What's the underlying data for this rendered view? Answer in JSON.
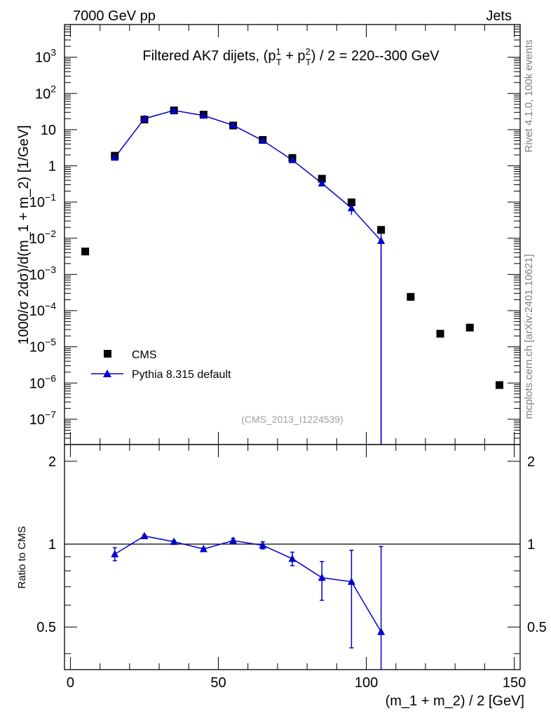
{
  "header": {
    "left": "7000 GeV pp",
    "right": "Jets"
  },
  "title": {
    "main": "Filtered AK7 dijets, (p",
    "sup1": "1",
    "sub1": "T",
    "plus": " + p",
    "sup2": "2",
    "sub2": "T",
    "tail": ") / 2 = 220--300 GeV"
  },
  "side_labels": {
    "rivet": "Rivet 4.1.0,  100k events",
    "mcplots": "mcplots.cern.ch [arXiv:2401.10621]"
  },
  "analysis_id": "(CMS_2013_I1224539)",
  "legend": {
    "cms": "CMS",
    "pythia": "Pythia 8.315 default"
  },
  "colors": {
    "data": "#000000",
    "mc": "#0000cc"
  },
  "chart_data": [
    {
      "type": "scatter",
      "panel": "main",
      "ylabel": "1000/σ  2dσ)/d(m_1 + m_2) [1/GeV]",
      "xlim": [
        -2,
        152
      ],
      "ylim": [
        2e-08,
        8000
      ],
      "yscale": "log",
      "yticks": [
        {
          "v": 1e-07,
          "label": "10",
          "exp": "−7"
        },
        {
          "v": 1e-06,
          "label": "10",
          "exp": "−6"
        },
        {
          "v": 1e-05,
          "label": "10",
          "exp": "−5"
        },
        {
          "v": 0.0001,
          "label": "10",
          "exp": "−4"
        },
        {
          "v": 0.001,
          "label": "10",
          "exp": "−3"
        },
        {
          "v": 0.01,
          "label": "10",
          "exp": "−2"
        },
        {
          "v": 0.1,
          "label": "10",
          "exp": "−1"
        },
        {
          "v": 1,
          "label": "1",
          "exp": ""
        },
        {
          "v": 10,
          "label": "10",
          "exp": ""
        },
        {
          "v": 100,
          "label": "10",
          "exp": "2"
        },
        {
          "v": 1000,
          "label": "10",
          "exp": "3"
        }
      ],
      "legend_position": "lower-left",
      "series": [
        {
          "name": "CMS",
          "marker": "square",
          "x": [
            5,
            15,
            25,
            35,
            45,
            55,
            65,
            75,
            85,
            95,
            105,
            115,
            125,
            135,
            145
          ],
          "y": [
            0.0043,
            1.9,
            19.0,
            34.0,
            26.0,
            13.0,
            5.2,
            1.65,
            0.44,
            0.098,
            0.017,
            0.00024,
            2.3e-05,
            3.4e-05,
            8.8e-07
          ]
        },
        {
          "name": "Pythia 8.315 default",
          "marker": "triangle",
          "x": [
            15,
            25,
            35,
            45,
            55,
            65,
            75,
            85,
            95,
            105
          ],
          "y": [
            1.7,
            20.0,
            34.0,
            24.5,
            13.2,
            5.0,
            1.45,
            0.33,
            0.068,
            0.0085
          ],
          "yerr_low": [
            0,
            0,
            0,
            0,
            0,
            0,
            0,
            0,
            0.024,
            0.0085
          ],
          "yerr_high": [
            0,
            0,
            0,
            0,
            0,
            0,
            0,
            0,
            0.022,
            0.0085
          ]
        }
      ]
    },
    {
      "type": "scatter",
      "panel": "ratio",
      "xlabel": "(m_1 + m_2) / 2 [GeV]",
      "ylabel": "Ratio to CMS",
      "xlim": [
        -2,
        152
      ],
      "ylim": [
        0.35,
        2.3
      ],
      "yscale": "log",
      "xticks": [
        0,
        50,
        100,
        150
      ],
      "yticks": [
        0.5,
        1,
        2
      ],
      "reference_line": 1,
      "series": [
        {
          "name": "Pythia 8.315 default",
          "x": [
            15,
            25,
            35,
            45,
            55,
            65,
            75,
            85,
            95,
            105
          ],
          "y": [
            0.92,
            1.07,
            1.02,
            0.96,
            1.03,
            0.99,
            0.885,
            0.755,
            0.73,
            0.48
          ],
          "yerr_low": [
            0.05,
            0.01,
            0.01,
            0.01,
            0.02,
            0.03,
            0.05,
            0.13,
            0.31,
            0.13
          ],
          "yerr_high": [
            0.05,
            0.01,
            0.01,
            0.01,
            0.02,
            0.03,
            0.05,
            0.11,
            0.22,
            0.5
          ]
        }
      ]
    }
  ]
}
